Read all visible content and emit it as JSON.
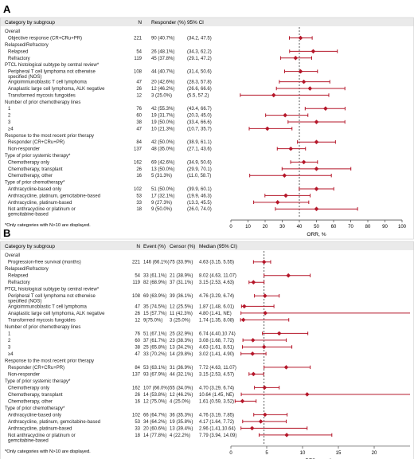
{
  "chart_data": [
    {
      "panel_label": "A",
      "type": "forest",
      "headers": {
        "category": "Category by subgroup",
        "n": "N",
        "resp": "Responder (%)",
        "ci": "95% CI"
      },
      "xlabel": "ORR, %",
      "xlim": [
        0,
        100
      ],
      "xticks": [
        "0",
        "10",
        "20",
        "30",
        "40",
        "50",
        "60",
        "70",
        "80",
        "90",
        "100"
      ],
      "reference_line": 40,
      "footnote": "*Only categories with N>10 are displayed.",
      "rows": [
        {
          "label": "Overall",
          "header": true
        },
        {
          "label": "Objective response (CR+CRu+PR)",
          "n": "221",
          "resp": "90 (40.7%)",
          "ci": "(34.2, 47.5)",
          "est": 40.7,
          "lo": 34.2,
          "hi": 47.5
        },
        {
          "label": "Relapsed/Refractory",
          "header": true
        },
        {
          "label": "Relapsed",
          "n": "54",
          "resp": "26 (48.1%)",
          "ci": "(34.3, 62.2)",
          "est": 48.1,
          "lo": 34.3,
          "hi": 62.2
        },
        {
          "label": "Refractory",
          "n": "119",
          "resp": "45 (37.8%)",
          "ci": "(29.1, 47.2)",
          "est": 37.8,
          "lo": 29.1,
          "hi": 47.2
        },
        {
          "label": "PTCL histological subtype by central review*",
          "header": true
        },
        {
          "label": "Peripheral T cell lymphoma not otherwise",
          "label2": "specified (NOS)",
          "n": "108",
          "resp": "44 (40.7%)",
          "ci": "(31.4, 50.6)",
          "est": 40.7,
          "lo": 31.4,
          "hi": 50.6
        },
        {
          "label": "Angioimmunoblastic T cell lymphoma",
          "n": "47",
          "resp": "20 (42.6%)",
          "ci": "(28.3, 57.8)",
          "est": 42.6,
          "lo": 28.3,
          "hi": 57.8
        },
        {
          "label": "Anaplastic large cell lymphoma, ALK negative",
          "n": "26",
          "resp": "12 (46.2%)",
          "ci": "(26.6, 66.6)",
          "est": 46.2,
          "lo": 26.6,
          "hi": 66.6
        },
        {
          "label": "Transformed mycosis fungoides",
          "n": "12",
          "resp": "3 (25.0%)",
          "ci": "(5.5, 57.2)",
          "est": 25.0,
          "lo": 5.5,
          "hi": 57.2
        },
        {
          "label": "Number of prior chemotherapy lines",
          "header": true
        },
        {
          "label": "1",
          "n": "76",
          "resp": "42 (55.3%)",
          "ci": "(43.4, 66.7)",
          "est": 55.3,
          "lo": 43.4,
          "hi": 66.7
        },
        {
          "label": "2",
          "n": "60",
          "resp": "19 (31.7%)",
          "ci": "(20.3, 45.0)",
          "est": 31.7,
          "lo": 20.3,
          "hi": 45.0
        },
        {
          "label": "3",
          "n": "38",
          "resp": "19 (50.0%)",
          "ci": "(33.4, 66.6)",
          "est": 50.0,
          "lo": 33.4,
          "hi": 66.6
        },
        {
          "label": "≥4",
          "n": "47",
          "resp": "10 (21.3%)",
          "ci": "(10.7, 35.7)",
          "est": 21.3,
          "lo": 10.7,
          "hi": 35.7
        },
        {
          "label": "Response to the most recent prior therapy",
          "header": true
        },
        {
          "label": "Responder (CR+CRu+PR)",
          "n": "84",
          "resp": "42 (50.0%)",
          "ci": "(38.9, 61.1)",
          "est": 50.0,
          "lo": 38.9,
          "hi": 61.1
        },
        {
          "label": "Non-responder",
          "n": "137",
          "resp": "48 (35.0%)",
          "ci": "(27.1, 43.6)",
          "est": 35.0,
          "lo": 27.1,
          "hi": 43.6
        },
        {
          "label": "Type of prior systemic therapy*",
          "header": true
        },
        {
          "label": "Chemotherapy only",
          "n": "162",
          "resp": "69 (42.6%)",
          "ci": "(34.9, 50.6)",
          "est": 42.6,
          "lo": 34.9,
          "hi": 50.6
        },
        {
          "label": "Chemotherapy, transplant",
          "n": "26",
          "resp": "13 (50.0%)",
          "ci": "(29.9, 70.1)",
          "est": 50.0,
          "lo": 29.9,
          "hi": 70.1
        },
        {
          "label": "Chemotherapy, other",
          "n": "16",
          "resp": "5 (31.3%)",
          "ci": "(11.0, 58.7)",
          "est": 31.3,
          "lo": 11.0,
          "hi": 58.7
        },
        {
          "label": "Type of prior chemotherapy*",
          "header": true
        },
        {
          "label": "Anthracycline-based only",
          "n": "102",
          "resp": "51 (50.0%)",
          "ci": "(39.9, 60.1)",
          "est": 50.0,
          "lo": 39.9,
          "hi": 60.1
        },
        {
          "label": "Anthracycline, platinum, gemcitabine-based",
          "n": "53",
          "resp": "17 (32.1%)",
          "ci": "(19.9, 46.3)",
          "est": 32.1,
          "lo": 19.9,
          "hi": 46.3
        },
        {
          "label": "Anthracycline, platinum-based",
          "n": "33",
          "resp": "9 (27.3%)",
          "ci": "(13.3, 45.5)",
          "est": 27.3,
          "lo": 13.3,
          "hi": 45.5
        },
        {
          "label": "Not anthracycline or platinum or",
          "label2": "gemcitabine-based",
          "n": "18",
          "resp": "9 (50.0%)",
          "ci": "(26.0, 74.0)",
          "est": 50.0,
          "lo": 26.0,
          "hi": 74.0
        }
      ]
    },
    {
      "panel_label": "B",
      "type": "forest",
      "headers": {
        "category": "Category by subgroup",
        "n": "N",
        "event": "Event (%)",
        "censor": "Censor (%)",
        "ci": "Median (95% CI)"
      },
      "xlabel": "PFS, months",
      "xlim": [
        0,
        25
      ],
      "xticks": [
        "0",
        "5",
        "10",
        "15",
        "20"
      ],
      "reference_line": 4.63,
      "footnote": "*Only categories with N>10 are displayed.",
      "rows": [
        {
          "label": "Overall",
          "header": true
        },
        {
          "label": "Progression-free survival (months)",
          "n": "221",
          "event": "146 (66.1%)",
          "censor": "75 (33.9%)",
          "ci": "4.63 (3.15, 5.55)",
          "est": 4.63,
          "lo": 3.15,
          "hi": 5.55
        },
        {
          "label": "Relapsed/Refractory",
          "header": true
        },
        {
          "label": "Relapsed",
          "n": "54",
          "event": "33 (61.1%)",
          "censor": "21 (38.9%)",
          "ci": "8.02 (4.63, 11.07)",
          "est": 8.02,
          "lo": 4.63,
          "hi": 11.07
        },
        {
          "label": "Refractory",
          "n": "119",
          "event": "82 (68.9%)",
          "censor": "37 (31.1%)",
          "ci": "3.15 (2.53, 4.63)",
          "est": 3.15,
          "lo": 2.53,
          "hi": 4.63
        },
        {
          "label": "PTCL histological subtype by central review*",
          "header": true
        },
        {
          "label": "Peripheral T cell lymphoma not otherwise",
          "label2": "specified (NOS)",
          "n": "108",
          "event": "69 (63.9%)",
          "censor": "39 (36.1%)",
          "ci": "4.76 (3.29, 6.74)",
          "est": 4.76,
          "lo": 3.29,
          "hi": 6.74
        },
        {
          "label": "Angioimmunoblastic T cell lymphoma",
          "n": "47",
          "event": "35 (74.5%)",
          "censor": "12 (25.5%)",
          "ci": "1.87 (1.48, 6.01)",
          "est": 1.87,
          "lo": 1.48,
          "hi": 6.01
        },
        {
          "label": "Anaplastic large cell lymphoma, ALK negative",
          "n": "26",
          "event": "15 (57.7%)",
          "censor": "11 (42.3%)",
          "ci": "4.80 (1.41, NE)",
          "est": 4.8,
          "lo": 1.41,
          "hi": null
        },
        {
          "label": "Transformed mycosis fungoides",
          "n": "12",
          "event": "9(75.0%)",
          "censor": "3 (25.0%)",
          "ci": "1.74 (1.35, 8.08)",
          "est": 1.74,
          "lo": 1.35,
          "hi": 8.08
        },
        {
          "label": "Number of prior chemotherapy lines",
          "header": true
        },
        {
          "label": "1",
          "n": "76",
          "event": "51 (67.1%)",
          "censor": "25 (32.9%)",
          "ci": "6.74 (4.40,10.74)",
          "est": 6.74,
          "lo": 4.4,
          "hi": 10.74
        },
        {
          "label": "2",
          "n": "60",
          "event": "37 (61.7%)",
          "censor": "23 (38.3%)",
          "ci": "3.08 (1.68, 7.72)",
          "est": 3.08,
          "lo": 1.68,
          "hi": 7.72
        },
        {
          "label": "3",
          "n": "38",
          "event": "25 (65.8%)",
          "censor": "13 (34.2%)",
          "ci": "4.63 (1.61, 8.51)",
          "est": 4.63,
          "lo": 1.61,
          "hi": 8.51
        },
        {
          "label": "≥4",
          "n": "47",
          "event": "33 (70.2%)",
          "censor": "14 (29.8%)",
          "ci": "3.02 (1.41, 4.90)",
          "est": 3.02,
          "lo": 1.41,
          "hi": 4.9
        },
        {
          "label": "Response to the most recent prior therapy",
          "header": true
        },
        {
          "label": "Responder (CR+CRu+PR)",
          "n": "84",
          "event": "53 (63.1%)",
          "censor": "31 (36.9%)",
          "ci": "7.72 (4.63, 11.07)",
          "est": 7.72,
          "lo": 4.63,
          "hi": 11.07
        },
        {
          "label": "Non-responder",
          "n": "137",
          "event": "93 (67.9%)",
          "censor": "44 (32.1%)",
          "ci": "3.15 (2.53, 4.57)",
          "est": 3.15,
          "lo": 2.53,
          "hi": 4.57
        },
        {
          "label": "Type of prior systemic therapy*",
          "header": true
        },
        {
          "label": "Chemotherapy only",
          "n": "162",
          "event": "107 (66.0%)",
          "censor": "55 (34.0%)",
          "ci": "4.70 (3.29, 6.74)",
          "est": 4.7,
          "lo": 3.29,
          "hi": 6.74
        },
        {
          "label": "Chemotherapy, transplant",
          "n": "26",
          "event": "14 (53.8%)",
          "censor": "12 (46.2%)",
          "ci": "10.64 (1.45, NE)",
          "est": 10.64,
          "lo": 1.45,
          "hi": null
        },
        {
          "label": "Chemotherapy, other",
          "n": "16",
          "event": "12 (75.0%)",
          "censor": "4 (25.0%)",
          "ci": "1.61 (0.59, 3.52)",
          "est": 1.61,
          "lo": 0.59,
          "hi": 3.52
        },
        {
          "label": "Type of prior chemotherapy*",
          "header": true
        },
        {
          "label": "Anthracycline-based only",
          "n": "102",
          "event": "66 (64.7%)",
          "censor": "36 (35.3%)",
          "ci": "4.76 (3.19, 7.85)",
          "est": 4.76,
          "lo": 3.19,
          "hi": 7.85
        },
        {
          "label": "Anthracycline, platinum, gemcitabine-based",
          "n": "53",
          "event": "34 (64.2%)",
          "censor": "19 (35.8%)",
          "ci": "4.17 (1.64, 7.72)",
          "est": 4.17,
          "lo": 1.64,
          "hi": 7.72
        },
        {
          "label": "Anthracycline, platinum-based",
          "n": "33",
          "event": "20 (60.6%)",
          "censor": "13 (39.4%)",
          "ci": "2.96 (1.41,10.64)",
          "est": 2.96,
          "lo": 1.41,
          "hi": 10.64
        },
        {
          "label": "Not anthracycline or platinum or",
          "label2": "gemcitabine-based",
          "n": "18",
          "event": "14 (77.8%)",
          "censor": "4 (22.2%)",
          "ci": "7.79 (3.94, 14.09)",
          "est": 7.79,
          "lo": 3.94,
          "hi": 14.09
        }
      ]
    }
  ],
  "colors": {
    "marker": "#b5172a",
    "band": "#eaeaea",
    "axis": "#555555",
    "text": "#222222"
  }
}
